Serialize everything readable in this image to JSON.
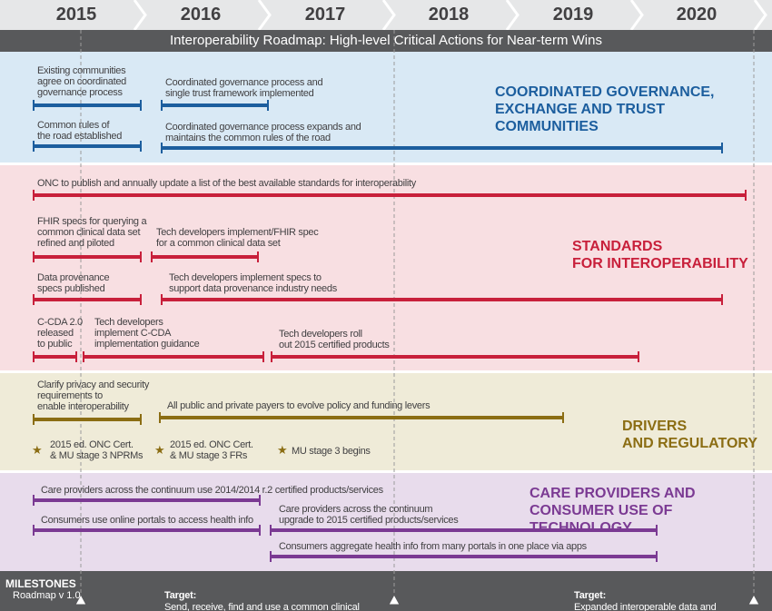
{
  "years": [
    "2015",
    "2016",
    "2017",
    "2018",
    "2019",
    "2020"
  ],
  "title": "Interoperability Roadmap: High-level Critical Actions for Near-term Wins",
  "colors": {
    "governance": "#1c5e9e",
    "standards": "#c8203b",
    "drivers": "#8b6d13",
    "care": "#7b3a93",
    "header_bg": "#58595b"
  },
  "governance": {
    "category": "COORDINATED GOVERNANCE,\nEXCHANGE AND TRUST COMMUNITIES",
    "items": [
      {
        "label": "Existing communities\nagree on coordinated\ngovernance process"
      },
      {
        "label": "Coordinated governance process and\nsingle trust framework implemented"
      },
      {
        "label": "Common rules of\nthe road established"
      },
      {
        "label": "Coordinated governance process expands and\nmaintains the common rules of the road"
      }
    ]
  },
  "standards": {
    "category": "STANDARDS\nFOR INTEROPERABILITY",
    "items": [
      {
        "label": "ONC to publish and annually update a list of the best available standards for interoperability"
      },
      {
        "label": "FHIR specs for querying a\ncommon clinical data set\nrefined and piloted"
      },
      {
        "label": "Tech developers implement/FHIR spec\nfor a common clinical data set"
      },
      {
        "label": "Data provenance\nspecs published"
      },
      {
        "label": "Tech developers implement specs to\nsupport data provenance industry needs"
      },
      {
        "label": "C-CDA 2.0\nreleased\nto public"
      },
      {
        "label": "Tech developers\nimplement C-CDA\nimplementation guidance"
      },
      {
        "label": "Tech developers roll\nout 2015 certified products"
      }
    ]
  },
  "drivers": {
    "category": "DRIVERS\nAND REGULATORY",
    "items": [
      {
        "label": "Clarify privacy and security\nrequirements to\nenable interoperability"
      },
      {
        "label": "All public and private payers to evolve policy and funding levers"
      }
    ],
    "stars": [
      {
        "label": "2015 ed. ONC Cert.\n& MU stage 3 NPRMs"
      },
      {
        "label": "2015 ed. ONC Cert.\n& MU stage 3 FRs"
      },
      {
        "label": "MU stage 3 begins"
      }
    ]
  },
  "care": {
    "category": "CARE PROVIDERS AND\nCONSUMER USE OF TECHNOLOGY",
    "items": [
      {
        "label": "Care providers across the continuum use 2014/2014 r.2 certified products/services"
      },
      {
        "label": "Consumers use online portals to access health info"
      },
      {
        "label": "Care providers across the continuum\nupgrade to 2015 certified products/services"
      },
      {
        "label": "Consumers aggregate health info from many portals in one place via apps"
      }
    ]
  },
  "milestones": {
    "title": "MILESTONES",
    "version": "Roadmap v 1.0",
    "target_word": "Target:",
    "target1": "Send, receive, find and use a common clinical\ndata set to improve health and health care quality.",
    "target2": "Expanded interoperable data and\nusers to improve health and lower costs"
  }
}
